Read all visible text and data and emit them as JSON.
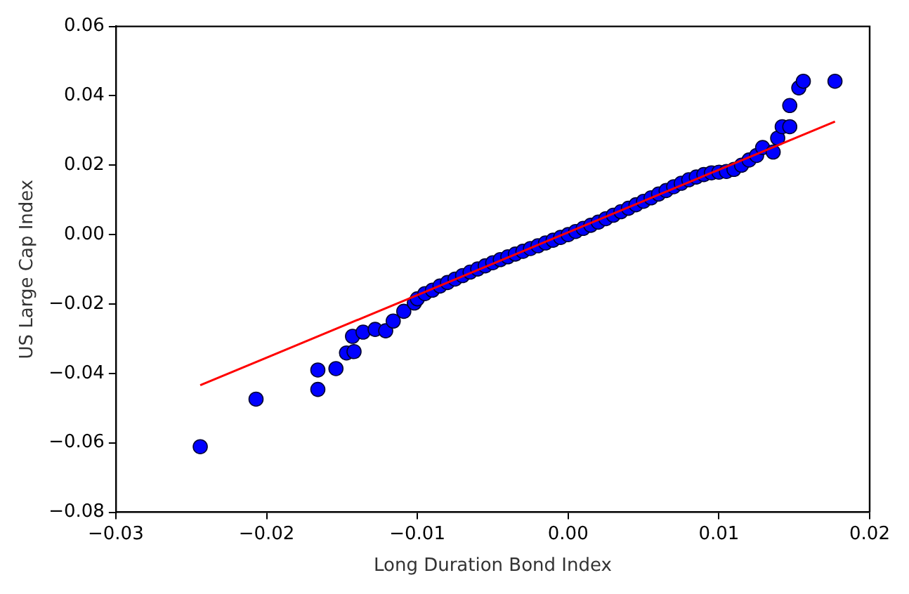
{
  "chart_data": {
    "type": "scatter",
    "xlabel": "Long Duration Bond Index",
    "ylabel": "US Large Cap Index",
    "xlim": [
      -0.03,
      0.02
    ],
    "xticks": [
      {
        "value": -0.03,
        "label": "−0.03"
      },
      {
        "value": -0.02,
        "label": "−0.02"
      },
      {
        "value": -0.01,
        "label": "−0.01"
      },
      {
        "value": 0,
        "label": "0.00"
      },
      {
        "value": 0.01,
        "label": "0.01"
      },
      {
        "value": 0.02,
        "label": "0.02"
      }
    ],
    "ylim": [
      -0.08,
      0.06
    ],
    "yticks": [
      {
        "value": -0.08,
        "label": "−0.08"
      },
      {
        "value": -0.06,
        "label": "−0.06"
      },
      {
        "value": -0.04,
        "label": "−0.04"
      },
      {
        "value": -0.02,
        "label": "−0.02"
      },
      {
        "value": 0,
        "label": "0.00"
      },
      {
        "value": 0.02,
        "label": "0.02"
      },
      {
        "value": 0.04,
        "label": "0.04"
      },
      {
        "value": 0.06,
        "label": "0.06"
      }
    ],
    "grid": false,
    "legend": false,
    "marker": "circle",
    "series": [
      {
        "color": "#0000ff",
        "x": [
          -0.0244,
          -0.0207,
          -0.0166,
          -0.0166,
          -0.0154,
          -0.0147,
          -0.0142,
          -0.0143,
          -0.0136,
          -0.0128,
          -0.0121,
          -0.0116,
          -0.0109,
          -0.0102,
          -0.01,
          -0.0095,
          -0.009,
          -0.0085,
          -0.008,
          -0.0075,
          -0.007,
          -0.0065,
          -0.006,
          -0.0055,
          -0.005,
          -0.0045,
          -0.004,
          -0.0035,
          -0.003,
          -0.0025,
          -0.002,
          -0.0015,
          -0.001,
          -0.0005,
          0,
          0.0005,
          0.001,
          0.0015,
          0.002,
          0.0025,
          0.003,
          0.0035,
          0.004,
          0.0045,
          0.005,
          0.0055,
          0.006,
          0.0065,
          0.007,
          0.0075,
          0.008,
          0.0085,
          0.009,
          0.0095,
          0.01,
          0.0105,
          0.011,
          0.0115,
          0.012,
          0.0125,
          0.0129,
          0.0136,
          0.0139,
          0.0142,
          0.0147,
          0.0147,
          0.0153,
          0.0156,
          0.0177
        ],
        "values": [
          -0.0611,
          -0.0474,
          -0.0446,
          -0.039,
          -0.0386,
          -0.0341,
          -0.0337,
          -0.0293,
          -0.0281,
          -0.0273,
          -0.0277,
          -0.0249,
          -0.0221,
          -0.0197,
          -0.0185,
          -0.017,
          -0.016,
          -0.0148,
          -0.0138,
          -0.0128,
          -0.0118,
          -0.0108,
          -0.0099,
          -0.009,
          -0.0081,
          -0.0072,
          -0.0064,
          -0.0056,
          -0.0048,
          -0.004,
          -0.0032,
          -0.0024,
          -0.0016,
          -0.0008,
          0.0,
          0.0009,
          0.0018,
          0.0027,
          0.0036,
          0.0046,
          0.0056,
          0.0066,
          0.0076,
          0.0086,
          0.0096,
          0.0106,
          0.0117,
          0.0127,
          0.0138,
          0.0148,
          0.0158,
          0.0166,
          0.0173,
          0.0178,
          0.018,
          0.0182,
          0.0188,
          0.02,
          0.0215,
          0.0228,
          0.0251,
          0.0238,
          0.0278,
          0.0311,
          0.0311,
          0.0372,
          0.0423,
          0.0442,
          0.0442
        ]
      },
      {
        "type": "line",
        "color": "#ff0000",
        "marker": "none",
        "line_style": "solid",
        "x": [
          -0.0244,
          0.0177
        ],
        "values": [
          -0.0434,
          0.0326
        ]
      }
    ]
  }
}
